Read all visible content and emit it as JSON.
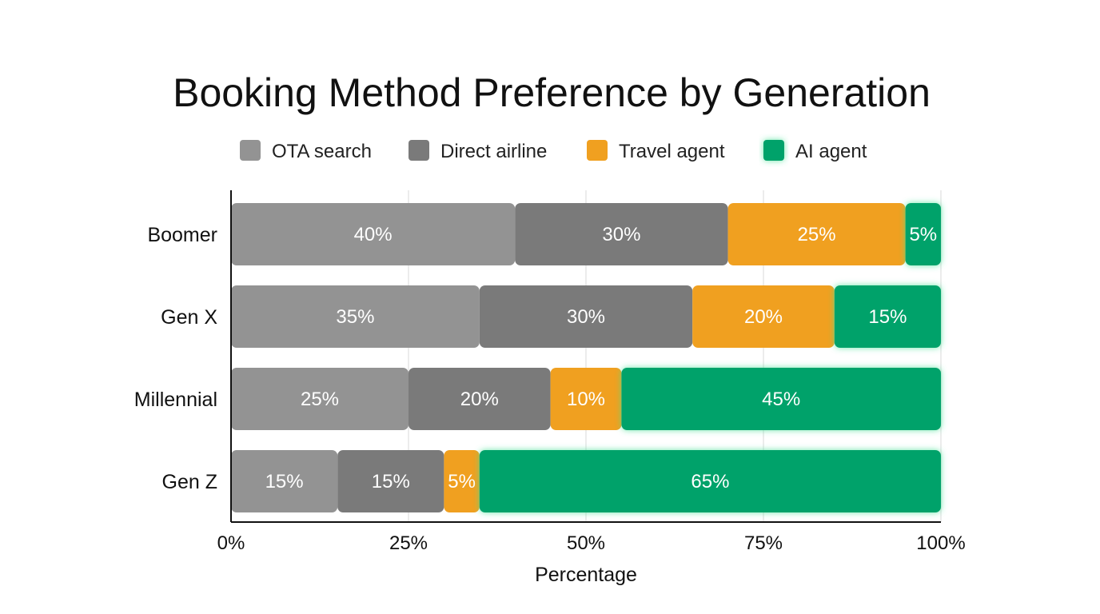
{
  "chart_data": {
    "type": "bar",
    "orientation": "horizontal",
    "stacked": true,
    "title": "Booking Method Preference by Generation",
    "xlabel": "Percentage",
    "ylabel": "",
    "xlim": [
      0,
      100
    ],
    "xticks": [
      0,
      25,
      50,
      75,
      100
    ],
    "xtick_labels": [
      "0%",
      "25%",
      "50%",
      "75%",
      "100%"
    ],
    "grid": "vertical",
    "legend_position": "top-center",
    "categories": [
      "Boomer",
      "Gen X",
      "Millennial",
      "Gen Z"
    ],
    "series": [
      {
        "name": "OTA search",
        "color": "#939393",
        "values": [
          40,
          35,
          25,
          15
        ],
        "labels": [
          "40%",
          "35%",
          "25%",
          "15%"
        ]
      },
      {
        "name": "Direct airline",
        "color": "#7a7a7a",
        "values": [
          30,
          30,
          20,
          15
        ],
        "labels": [
          "30%",
          "30%",
          "20%",
          "15%"
        ]
      },
      {
        "name": "Travel agent",
        "color": "#f0a020",
        "values": [
          25,
          20,
          10,
          5
        ],
        "labels": [
          "25%",
          "20%",
          "10%",
          "5%"
        ]
      },
      {
        "name": "AI agent",
        "color": "#06a26a",
        "values": [
          5,
          15,
          45,
          65
        ],
        "labels": [
          "5%",
          "15%",
          "45%",
          "65%"
        ],
        "highlighted": true
      }
    ]
  }
}
